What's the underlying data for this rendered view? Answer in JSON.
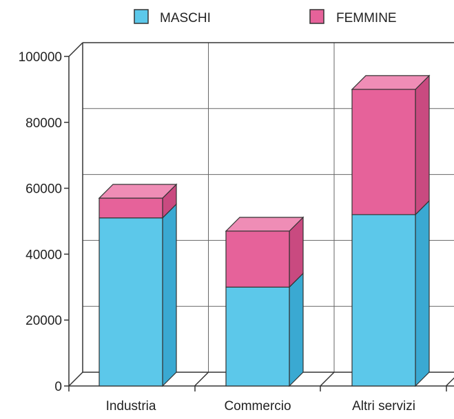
{
  "colors": {
    "maschi": "#5cc8ea",
    "maschi_dark": "#3aa9d2",
    "maschi_top": "#8fdaf2",
    "femmine": "#e6629a",
    "femmine_dark": "#c94a80",
    "femmine_top": "#ef8db6",
    "edge": "#333333"
  },
  "chart_data": {
    "type": "bar",
    "stacked": true,
    "three_d": true,
    "categories": [
      "Industria",
      "Commercio",
      "Altri servizi"
    ],
    "series": [
      {
        "name": "MASCHI",
        "values": [
          51000,
          30000,
          52000
        ],
        "color_key": "maschi"
      },
      {
        "name": "FEMMINE",
        "values": [
          6000,
          17000,
          38000
        ],
        "color_key": "femmine"
      }
    ],
    "ylim": [
      0,
      100000
    ],
    "yticks": [
      0,
      20000,
      40000,
      60000,
      80000,
      100000
    ],
    "ytick_labels": [
      "0",
      "20000",
      "40000",
      "60000",
      "80000",
      "100000"
    ],
    "grid": true,
    "legend": "top"
  }
}
